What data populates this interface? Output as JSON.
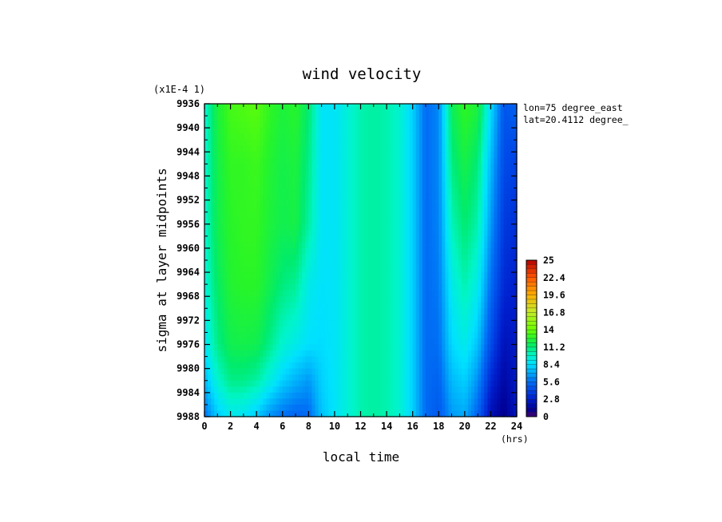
{
  "chart_data": {
    "type": "heatmap",
    "title": "wind velocity",
    "xlabel": "local time",
    "ylabel": "sigma at layer midpoints",
    "x_unit": "(hrs)",
    "y_scale_note": "(x1E-4 1)",
    "info": [
      "lon=75 degree_east",
      "lat=20.4112 degree_"
    ],
    "xlim": [
      0,
      24
    ],
    "ylim": [
      9936,
      9988
    ],
    "x_ticks": [
      "0",
      "2",
      "4",
      "6",
      "8",
      "10",
      "12",
      "14",
      "16",
      "18",
      "20",
      "22",
      "24"
    ],
    "y_ticks": [
      "9936",
      "9940",
      "9944",
      "9948",
      "9952",
      "9956",
      "9960",
      "9964",
      "9968",
      "9972",
      "9976",
      "9980",
      "9984",
      "9988"
    ],
    "colorbar": {
      "min": 0,
      "max": 25,
      "ticks": [
        "25",
        "22.4",
        "19.6",
        "16.8",
        "14",
        "11.2",
        "8.4",
        "5.6",
        "2.8",
        "0"
      ]
    },
    "x": [
      0,
      1,
      2,
      3,
      4,
      5,
      6,
      7,
      8,
      9,
      10,
      11,
      12,
      13,
      14,
      15,
      16,
      17,
      18,
      19,
      20,
      21,
      22,
      23,
      24
    ],
    "y": [
      9936,
      9946,
      9956,
      9966,
      9976,
      9982,
      9988
    ],
    "z": [
      [
        9.5,
        12.2,
        13.2,
        13.4,
        13.6,
        12.8,
        12.2,
        12.6,
        11.2,
        8.6,
        8.6,
        9.4,
        10.2,
        10.4,
        10.2,
        9.6,
        8.0,
        5.5,
        6.2,
        11.6,
        12.8,
        12.2,
        8.4,
        4.8,
        5.2
      ],
      [
        9.6,
        11.9,
        12.8,
        12.8,
        13.0,
        12.4,
        11.9,
        12.2,
        10.8,
        8.6,
        8.6,
        9.4,
        10.2,
        10.4,
        10.2,
        9.6,
        8.0,
        5.5,
        6.2,
        10.9,
        12.0,
        11.0,
        7.4,
        4.4,
        4.0
      ],
      [
        9.6,
        11.8,
        12.6,
        12.8,
        12.8,
        12.2,
        11.8,
        12.0,
        10.4,
        8.6,
        8.6,
        9.4,
        10.2,
        10.4,
        10.2,
        9.6,
        8.0,
        5.5,
        6.1,
        10.0,
        11.2,
        10.2,
        6.6,
        3.8,
        3.4
      ],
      [
        9.3,
        11.4,
        12.4,
        12.6,
        12.6,
        11.8,
        11.0,
        10.6,
        9.0,
        8.5,
        8.6,
        9.4,
        10.2,
        10.4,
        10.2,
        9.6,
        8.0,
        5.5,
        5.9,
        9.0,
        10.2,
        9.0,
        5.6,
        3.2,
        2.8
      ],
      [
        8.6,
        10.8,
        11.8,
        11.9,
        11.8,
        10.8,
        9.6,
        9.0,
        8.4,
        8.3,
        8.6,
        9.4,
        10.2,
        10.4,
        10.2,
        9.6,
        8.0,
        5.5,
        5.6,
        8.2,
        9.0,
        7.6,
        4.4,
        2.2,
        2.6
      ],
      [
        7.4,
        9.6,
        10.8,
        10.8,
        10.4,
        9.2,
        8.0,
        7.2,
        6.6,
        8.0,
        8.6,
        9.4,
        10.2,
        10.4,
        10.2,
        9.6,
        8.0,
        5.5,
        5.2,
        7.4,
        8.0,
        6.4,
        3.2,
        1.6,
        2.6
      ],
      [
        5.6,
        7.8,
        8.8,
        8.6,
        7.8,
        6.4,
        5.6,
        5.2,
        5.4,
        7.6,
        8.6,
        9.4,
        10.2,
        10.4,
        10.2,
        9.6,
        8.0,
        5.5,
        4.8,
        6.6,
        7.0,
        5.2,
        2.0,
        1.0,
        2.4
      ]
    ]
  }
}
